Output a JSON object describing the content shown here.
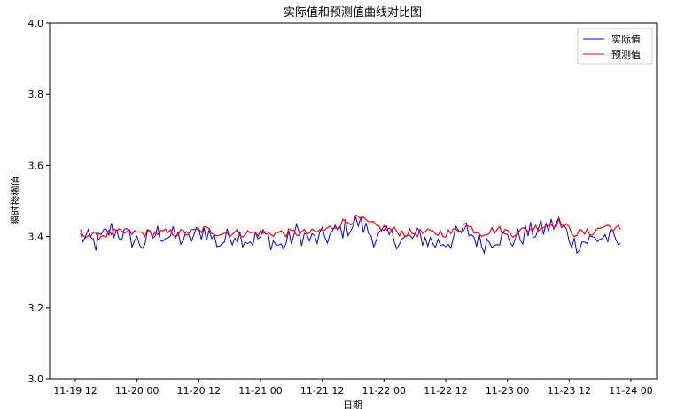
{
  "chart_data": {
    "type": "line",
    "title": "实际值和预测值曲线对比图",
    "xlabel": "日期",
    "ylabel": "瞬时掺稀值",
    "xlim": [
      "2021-11-19T07:00",
      "2021-11-24T05:00"
    ],
    "ylim": [
      3.0,
      4.0
    ],
    "x_ticks": [
      {
        "x": "2021-11-19T12:00",
        "label": "11-19 12"
      },
      {
        "x": "2021-11-20T00:00",
        "label": "11-20 00"
      },
      {
        "x": "2021-11-20T12:00",
        "label": "11-20 12"
      },
      {
        "x": "2021-11-21T00:00",
        "label": "11-21 00"
      },
      {
        "x": "2021-11-21T12:00",
        "label": "11-21 12"
      },
      {
        "x": "2021-11-22T00:00",
        "label": "11-22 00"
      },
      {
        "x": "2021-11-22T12:00",
        "label": "11-22 12"
      },
      {
        "x": "2021-11-23T00:00",
        "label": "11-23 00"
      },
      {
        "x": "2021-11-23T12:00",
        "label": "11-23 12"
      },
      {
        "x": "2021-11-24T00:00",
        "label": "11-24 00"
      }
    ],
    "y_ticks": [
      3.0,
      3.2,
      3.4,
      3.6,
      3.8,
      4.0
    ],
    "y_tick_labels": [
      "3.0",
      "3.2",
      "3.4",
      "3.6",
      "3.8",
      "4.0"
    ],
    "grid": false,
    "legend_position": "top-right",
    "series": [
      {
        "name": "实际值",
        "color": "#0000ff",
        "x": [
          "2021-11-19T13:00",
          "2021-11-19T16:00",
          "2021-11-19T19:00",
          "2021-11-19T22:00",
          "2021-11-20T01:00",
          "2021-11-20T04:00",
          "2021-11-20T07:00",
          "2021-11-20T10:00",
          "2021-11-20T13:00",
          "2021-11-20T16:00",
          "2021-11-20T19:00",
          "2021-11-20T22:00",
          "2021-11-21T01:00",
          "2021-11-21T04:00",
          "2021-11-21T07:00",
          "2021-11-21T10:00",
          "2021-11-21T13:00",
          "2021-11-21T16:00",
          "2021-11-21T19:00",
          "2021-11-21T22:00",
          "2021-11-22T01:00",
          "2021-11-22T04:00",
          "2021-11-22T07:00",
          "2021-11-22T10:00",
          "2021-11-22T13:00",
          "2021-11-22T16:00",
          "2021-11-22T19:00",
          "2021-11-22T22:00",
          "2021-11-23T01:00",
          "2021-11-23T04:00",
          "2021-11-23T07:00",
          "2021-11-23T10:00",
          "2021-11-23T13:00",
          "2021-11-23T16:00",
          "2021-11-23T19:00",
          "2021-11-23T22:00"
        ],
        "y": [
          3.4,
          3.38,
          3.42,
          3.4,
          3.38,
          3.41,
          3.4,
          3.39,
          3.42,
          3.38,
          3.41,
          3.39,
          3.4,
          3.37,
          3.41,
          3.39,
          3.4,
          3.42,
          3.44,
          3.4,
          3.4,
          3.39,
          3.4,
          3.38,
          3.39,
          3.42,
          3.38,
          3.4,
          3.39,
          3.41,
          3.42,
          3.44,
          3.38,
          3.39,
          3.4,
          3.38
        ]
      },
      {
        "name": "预测值",
        "color": "#ff0000",
        "x": [
          "2021-11-19T13:00",
          "2021-11-19T16:00",
          "2021-11-19T19:00",
          "2021-11-19T22:00",
          "2021-11-20T01:00",
          "2021-11-20T04:00",
          "2021-11-20T07:00",
          "2021-11-20T10:00",
          "2021-11-20T13:00",
          "2021-11-20T16:00",
          "2021-11-20T19:00",
          "2021-11-20T22:00",
          "2021-11-21T01:00",
          "2021-11-21T04:00",
          "2021-11-21T07:00",
          "2021-11-21T10:00",
          "2021-11-21T13:00",
          "2021-11-21T16:00",
          "2021-11-21T19:00",
          "2021-11-21T22:00",
          "2021-11-22T01:00",
          "2021-11-22T04:00",
          "2021-11-22T07:00",
          "2021-11-22T10:00",
          "2021-11-22T13:00",
          "2021-11-22T16:00",
          "2021-11-22T19:00",
          "2021-11-22T22:00",
          "2021-11-23T01:00",
          "2021-11-23T04:00",
          "2021-11-23T07:00",
          "2021-11-23T10:00",
          "2021-11-23T13:00",
          "2021-11-23T16:00",
          "2021-11-23T19:00",
          "2021-11-23T22:00"
        ],
        "y": [
          3.41,
          3.4,
          3.41,
          3.41,
          3.41,
          3.41,
          3.41,
          3.41,
          3.42,
          3.41,
          3.41,
          3.41,
          3.41,
          3.41,
          3.41,
          3.41,
          3.42,
          3.44,
          3.45,
          3.43,
          3.42,
          3.41,
          3.41,
          3.41,
          3.41,
          3.43,
          3.41,
          3.42,
          3.41,
          3.42,
          3.43,
          3.44,
          3.41,
          3.41,
          3.43,
          3.42
        ]
      }
    ]
  }
}
